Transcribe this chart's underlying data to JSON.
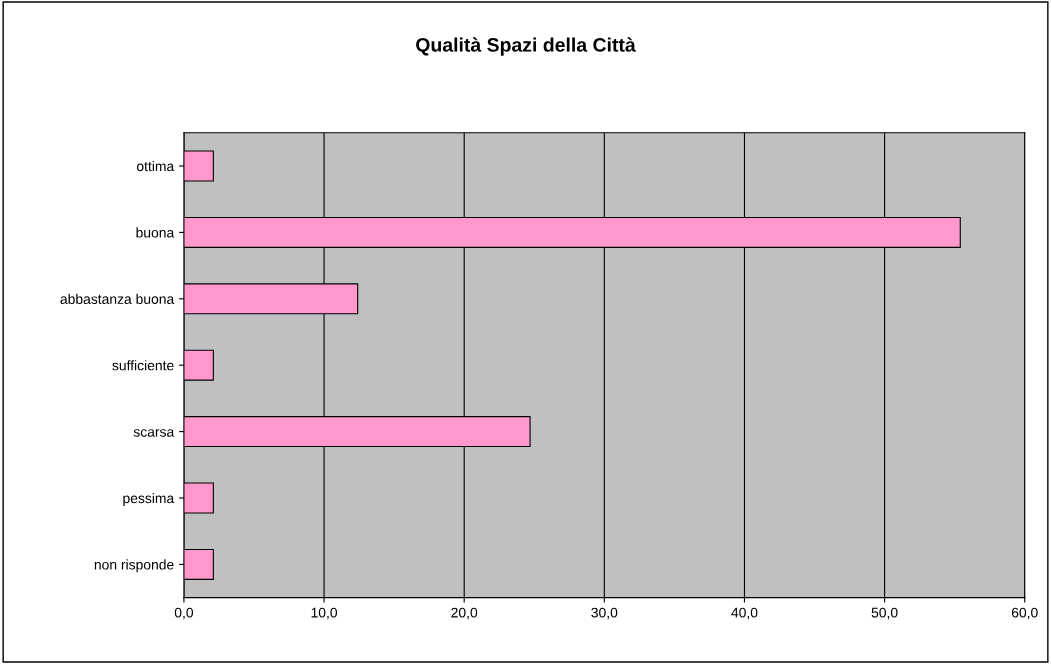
{
  "chart_data": {
    "type": "bar",
    "orientation": "horizontal",
    "title": "Qualità Spazi della Città",
    "categories": [
      "ottima",
      "buona",
      "abbastanza buona",
      "sufficiente",
      "scarsa",
      "pessima",
      "non risponde"
    ],
    "values": [
      2.1,
      55.4,
      12.4,
      2.1,
      24.7,
      2.1,
      2.1
    ],
    "color": "#ff99cc",
    "xlim": [
      0,
      60
    ],
    "xticks": [
      {
        "value": 0,
        "label": "0,0"
      },
      {
        "value": 10,
        "label": "10,0"
      },
      {
        "value": 20,
        "label": "20,0"
      },
      {
        "value": 30,
        "label": "30,0"
      },
      {
        "value": 40,
        "label": "40,0"
      },
      {
        "value": 50,
        "label": "50,0"
      },
      {
        "value": 60,
        "label": "60,0"
      }
    ],
    "grid": "x",
    "legend": false
  }
}
